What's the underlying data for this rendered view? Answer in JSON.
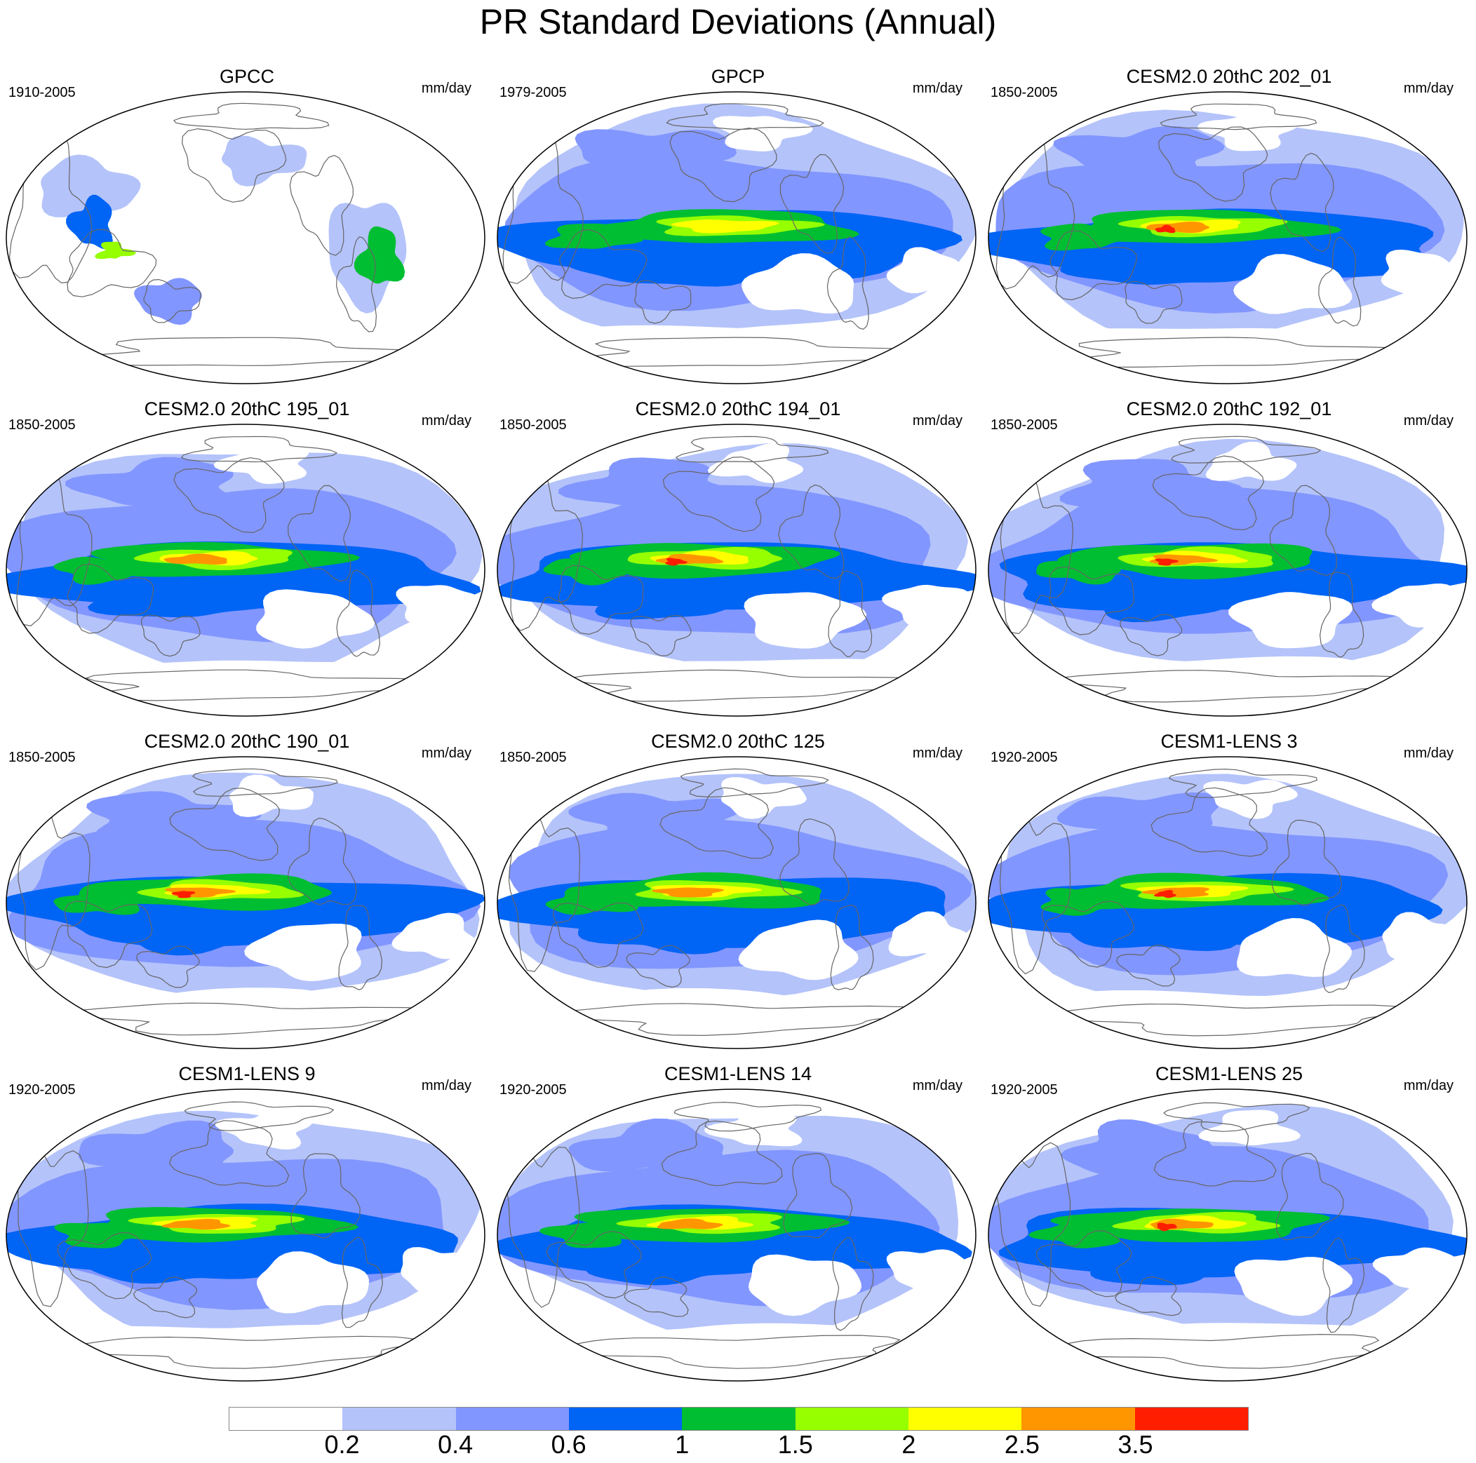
{
  "title": "PR Standard Deviations (Annual)",
  "units": "mm/day",
  "panels": [
    {
      "title": "GPCC",
      "years": "1910-2005",
      "style": "obs_land"
    },
    {
      "title": "GPCP",
      "years": "1979-2005",
      "style": "obs_sat"
    },
    {
      "title": "CESM2.0 20thC 202_01",
      "years": "1850-2005",
      "style": "model",
      "peak": "red"
    },
    {
      "title": "CESM2.0 20thC 195_01",
      "years": "1850-2005",
      "style": "model",
      "peak": "orange"
    },
    {
      "title": "CESM2.0 20thC 194_01",
      "years": "1850-2005",
      "style": "model",
      "peak": "red"
    },
    {
      "title": "CESM2.0 20thC 192_01",
      "years": "1850-2005",
      "style": "model",
      "peak": "red"
    },
    {
      "title": "CESM2.0 20thC 190_01",
      "years": "1850-2005",
      "style": "model",
      "peak": "red"
    },
    {
      "title": "CESM2.0 20thC 125",
      "years": "1850-2005",
      "style": "model",
      "peak": "orange"
    },
    {
      "title": "CESM1-LENS 3",
      "years": "1920-2005",
      "style": "lens",
      "peak": "red"
    },
    {
      "title": "CESM1-LENS 9",
      "years": "1920-2005",
      "style": "lens",
      "peak": "orange"
    },
    {
      "title": "CESM1-LENS 14",
      "years": "1920-2005",
      "style": "lens",
      "peak": "orange"
    },
    {
      "title": "CESM1-LENS 25",
      "years": "1920-2005",
      "style": "lens",
      "peak": "red"
    }
  ],
  "colorbar": {
    "colors": [
      "#ffffff",
      "#b4c3fa",
      "#8296ff",
      "#0064f5",
      "#00be32",
      "#96ff00",
      "#ffff00",
      "#ff9600",
      "#ff1e00"
    ],
    "labels": [
      "0.2",
      "0.4",
      "0.6",
      "1",
      "1.5",
      "2",
      "2.5",
      "3.5"
    ]
  }
}
